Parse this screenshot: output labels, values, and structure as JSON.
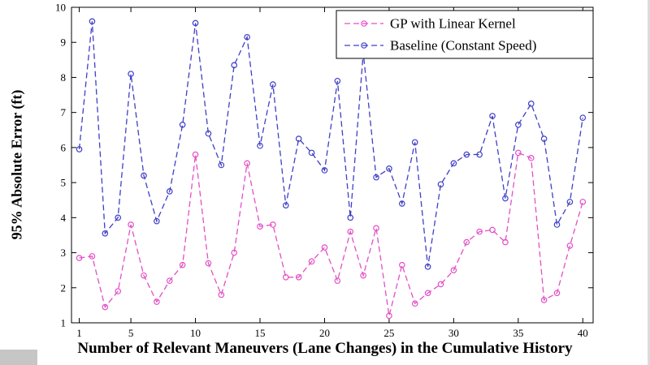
{
  "chart_data": {
    "type": "line",
    "title": "",
    "xlabel": "Number of Relevant Maneuvers (Lane Changes) in the Cumulative History",
    "ylabel": "95% Absolute Error (ft)",
    "xlim": [
      0.4,
      40.8
    ],
    "ylim": [
      1,
      10
    ],
    "xticks": [
      1,
      5,
      10,
      15,
      20,
      25,
      30,
      35,
      40
    ],
    "yticks": [
      1,
      2,
      3,
      4,
      5,
      6,
      7,
      8,
      9,
      10
    ],
    "grid": false,
    "legend_position": "top-right",
    "x": [
      1,
      2,
      3,
      4,
      5,
      6,
      7,
      8,
      9,
      10,
      11,
      12,
      13,
      14,
      15,
      16,
      17,
      18,
      19,
      20,
      21,
      22,
      23,
      24,
      25,
      26,
      27,
      28,
      29,
      30,
      31,
      32,
      33,
      34,
      35,
      36,
      37,
      38,
      39,
      40
    ],
    "series": [
      {
        "name": "GP with Linear Kernel",
        "color": "#E44FC6",
        "marker": "circle",
        "linestyle": "dashed",
        "values": [
          2.85,
          2.9,
          1.45,
          1.9,
          3.8,
          2.35,
          1.6,
          2.2,
          2.65,
          5.8,
          2.7,
          1.8,
          3.0,
          5.55,
          3.75,
          3.8,
          2.3,
          2.3,
          2.75,
          3.15,
          2.2,
          3.6,
          2.35,
          3.7,
          1.2,
          2.65,
          1.55,
          1.85,
          2.1,
          2.5,
          3.3,
          3.6,
          3.65,
          3.3,
          5.85,
          5.7,
          1.65,
          1.85,
          3.2,
          4.45
        ]
      },
      {
        "name": "Baseline (Constant Speed)",
        "color": "#3F3FC8",
        "marker": "circle",
        "linestyle": "dashed",
        "values": [
          5.95,
          9.6,
          3.55,
          4.0,
          8.1,
          5.2,
          3.9,
          4.75,
          6.65,
          9.55,
          6.4,
          5.5,
          8.35,
          9.15,
          6.05,
          7.8,
          4.35,
          6.25,
          5.85,
          5.35,
          7.9,
          4.0,
          8.7,
          5.15,
          5.4,
          4.4,
          6.15,
          2.6,
          4.95,
          5.55,
          5.8,
          5.8,
          6.9,
          4.55,
          6.65,
          7.25,
          6.25,
          3.8,
          4.45,
          6.85
        ]
      }
    ]
  }
}
